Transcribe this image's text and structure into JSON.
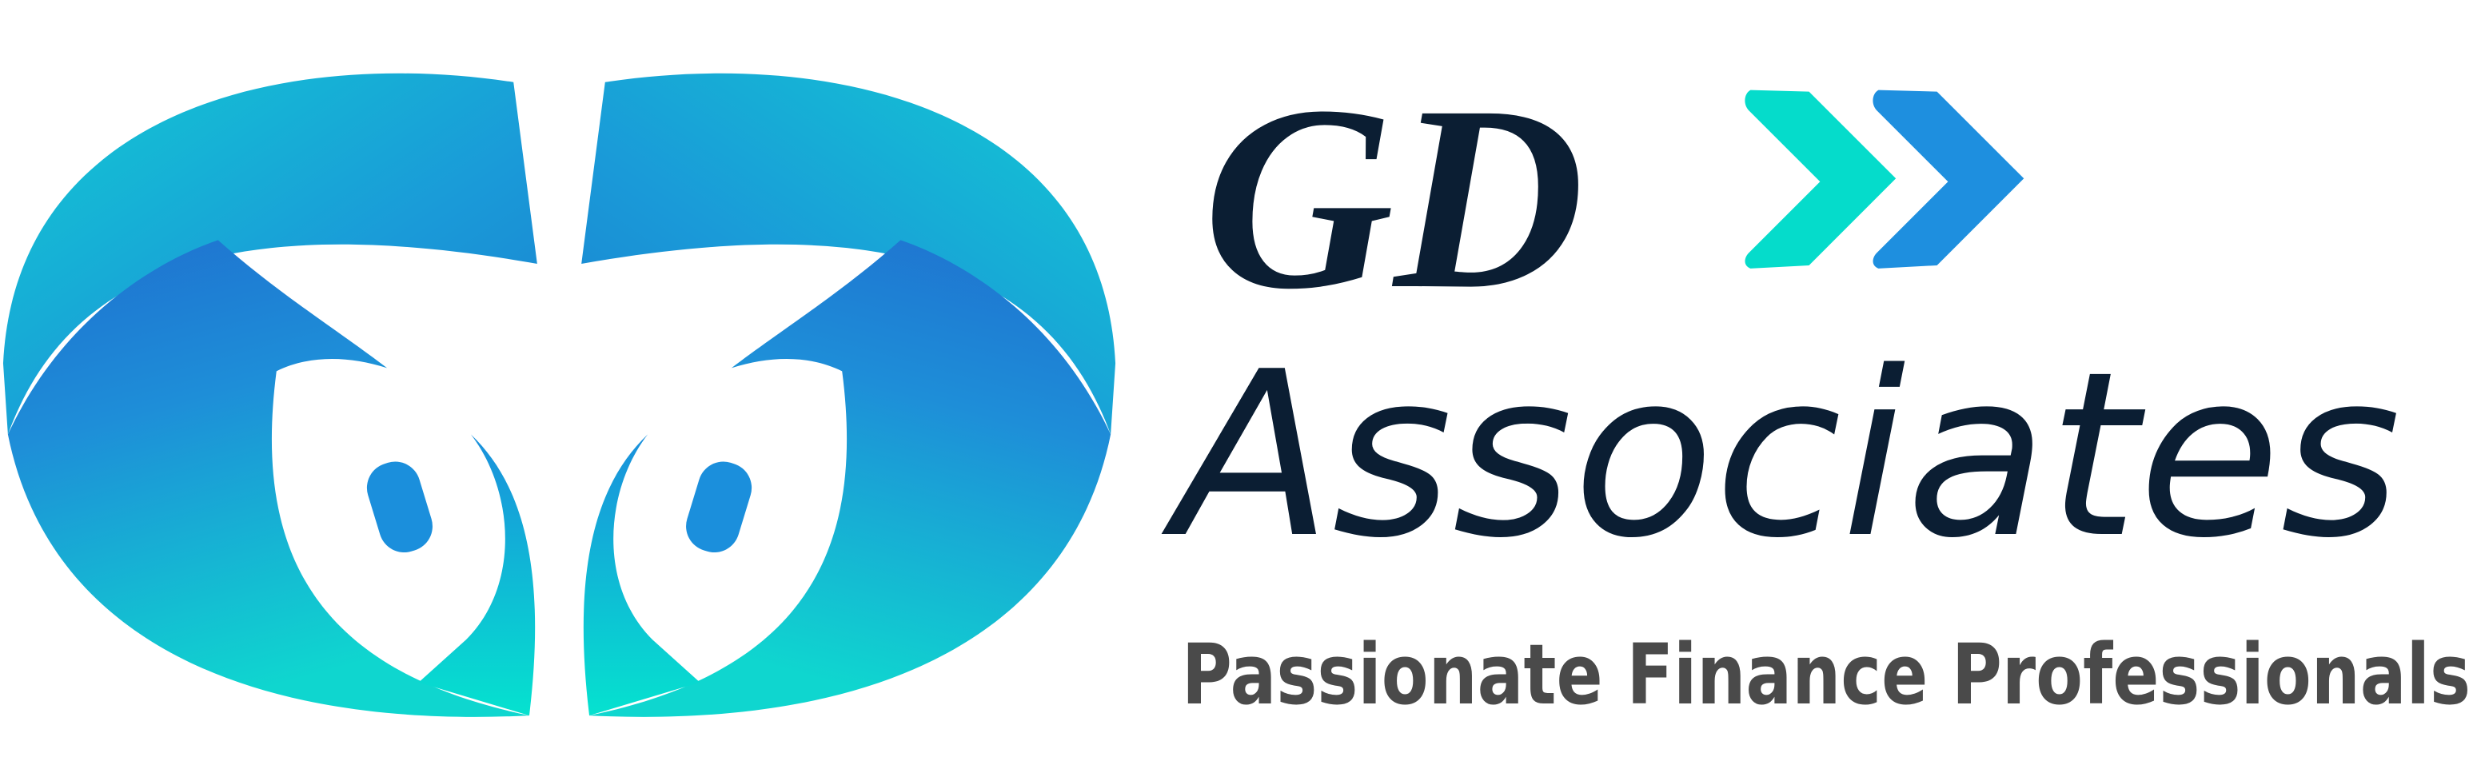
{
  "brand": {
    "name": "GD",
    "subtitle": "Associates",
    "tagline": "Passionate Finance Professionals"
  }
}
